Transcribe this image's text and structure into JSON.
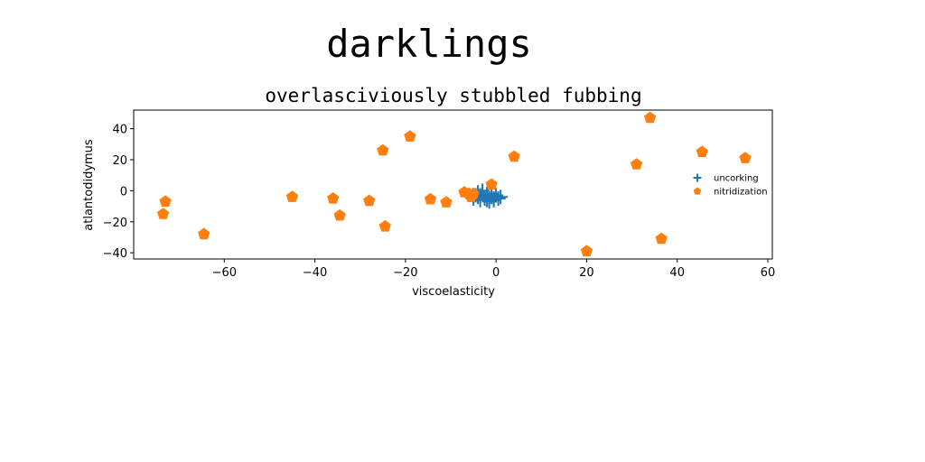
{
  "figure": {
    "suptitle": "darklings"
  },
  "chart_data": {
    "type": "scatter",
    "title": "overlasciviously stubbled fubbing",
    "xlabel": "viscoelasticity",
    "ylabel": "atlantodidymus",
    "xlim": [
      -80,
      61
    ],
    "ylim": [
      -44,
      52
    ],
    "xticks": [
      -60,
      -40,
      -20,
      0,
      20,
      40,
      60
    ],
    "yticks": [
      -40,
      -20,
      0,
      20,
      40
    ],
    "grid": false,
    "legend_position": "center-right",
    "series": [
      {
        "name": "uncorking",
        "marker": "plus",
        "color": "#1f77b4",
        "points": [
          [
            -4,
            -4
          ],
          [
            -3.5,
            -6
          ],
          [
            -3,
            -2
          ],
          [
            -2.5,
            -5
          ],
          [
            -2,
            -3
          ],
          [
            -1.5,
            -7
          ],
          [
            -1,
            -4
          ],
          [
            -0.5,
            -5
          ],
          [
            0,
            -3
          ],
          [
            0.5,
            -5
          ],
          [
            -3,
            0
          ],
          [
            -4.5,
            -3
          ],
          [
            -2,
            -6
          ],
          [
            -1,
            -2
          ],
          [
            -5,
            -5
          ],
          [
            -2.5,
            -4
          ],
          [
            1,
            -4
          ],
          [
            -1.5,
            -5
          ],
          [
            -3.5,
            -3
          ],
          [
            -0.5,
            -6
          ],
          [
            -4,
            -1
          ],
          [
            -2,
            -2
          ]
        ]
      },
      {
        "name": "nitridization",
        "marker": "pentagon",
        "color": "#ff7f0e",
        "points": [
          [
            -73.5,
            -15
          ],
          [
            -73,
            -7
          ],
          [
            -64.5,
            -28
          ],
          [
            -45,
            -4
          ],
          [
            -36,
            -5
          ],
          [
            -34.5,
            -16
          ],
          [
            -28,
            -6.5
          ],
          [
            -25,
            26
          ],
          [
            -24.5,
            -23
          ],
          [
            -19,
            35
          ],
          [
            -14.5,
            -5.5
          ],
          [
            -11,
            -7.5
          ],
          [
            -7,
            -1
          ],
          [
            -6,
            -2
          ],
          [
            -5.5,
            -4
          ],
          [
            -5,
            -2
          ],
          [
            -1,
            4
          ],
          [
            4,
            22
          ],
          [
            20,
            -39
          ],
          [
            31,
            17
          ],
          [
            34,
            47
          ],
          [
            36.5,
            -31
          ],
          [
            45.5,
            25
          ],
          [
            55,
            21
          ]
        ]
      }
    ]
  }
}
